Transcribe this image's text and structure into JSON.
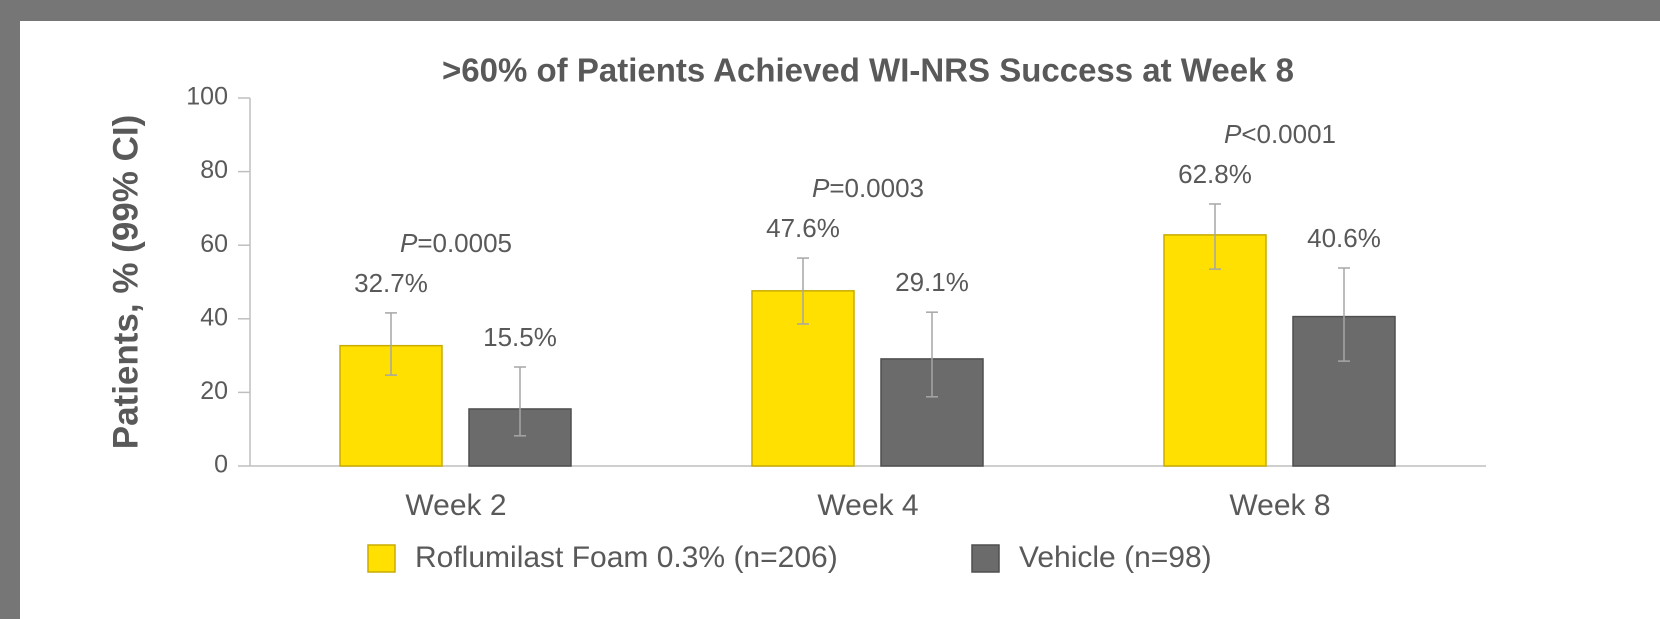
{
  "chart_data": {
    "type": "bar",
    "title": ">60% of Patients Achieved WI-NRS Success at Week 8",
    "y_label": "Patients, % (99% CI)",
    "categories": [
      "Week 2",
      "Week 4",
      "Week 8"
    ],
    "series": [
      {
        "name": "Roflumilast Foam 0.3% (n=206)",
        "color": "#FFE000",
        "stroke": "#C9AC00",
        "values": [
          32.7,
          47.6,
          62.8
        ],
        "value_labels": [
          "32.7%",
          "47.6%",
          "62.8%"
        ],
        "ci_low": [
          24.7,
          38.6,
          53.5
        ],
        "ci_high": [
          41.6,
          56.5,
          71.2
        ]
      },
      {
        "name": "Vehicle (n=98)",
        "color": "#6B6B6B",
        "stroke": "#4F4F4F",
        "values": [
          15.5,
          29.1,
          40.6
        ],
        "value_labels": [
          "15.5%",
          "29.1%",
          "40.6%"
        ],
        "ci_low": [
          8.2,
          18.8,
          28.5
        ],
        "ci_high": [
          26.9,
          41.8,
          53.8
        ]
      }
    ],
    "annotations": [
      {
        "italic": "P",
        "text": "=0.0005"
      },
      {
        "italic": "P",
        "text": "=0.0003"
      },
      {
        "italic": "P",
        "text": "<0.0001"
      }
    ],
    "ylim": [
      0,
      100
    ],
    "yticks": [
      0,
      20,
      40,
      60,
      80,
      100
    ],
    "grid": false,
    "legend": "bottom"
  }
}
